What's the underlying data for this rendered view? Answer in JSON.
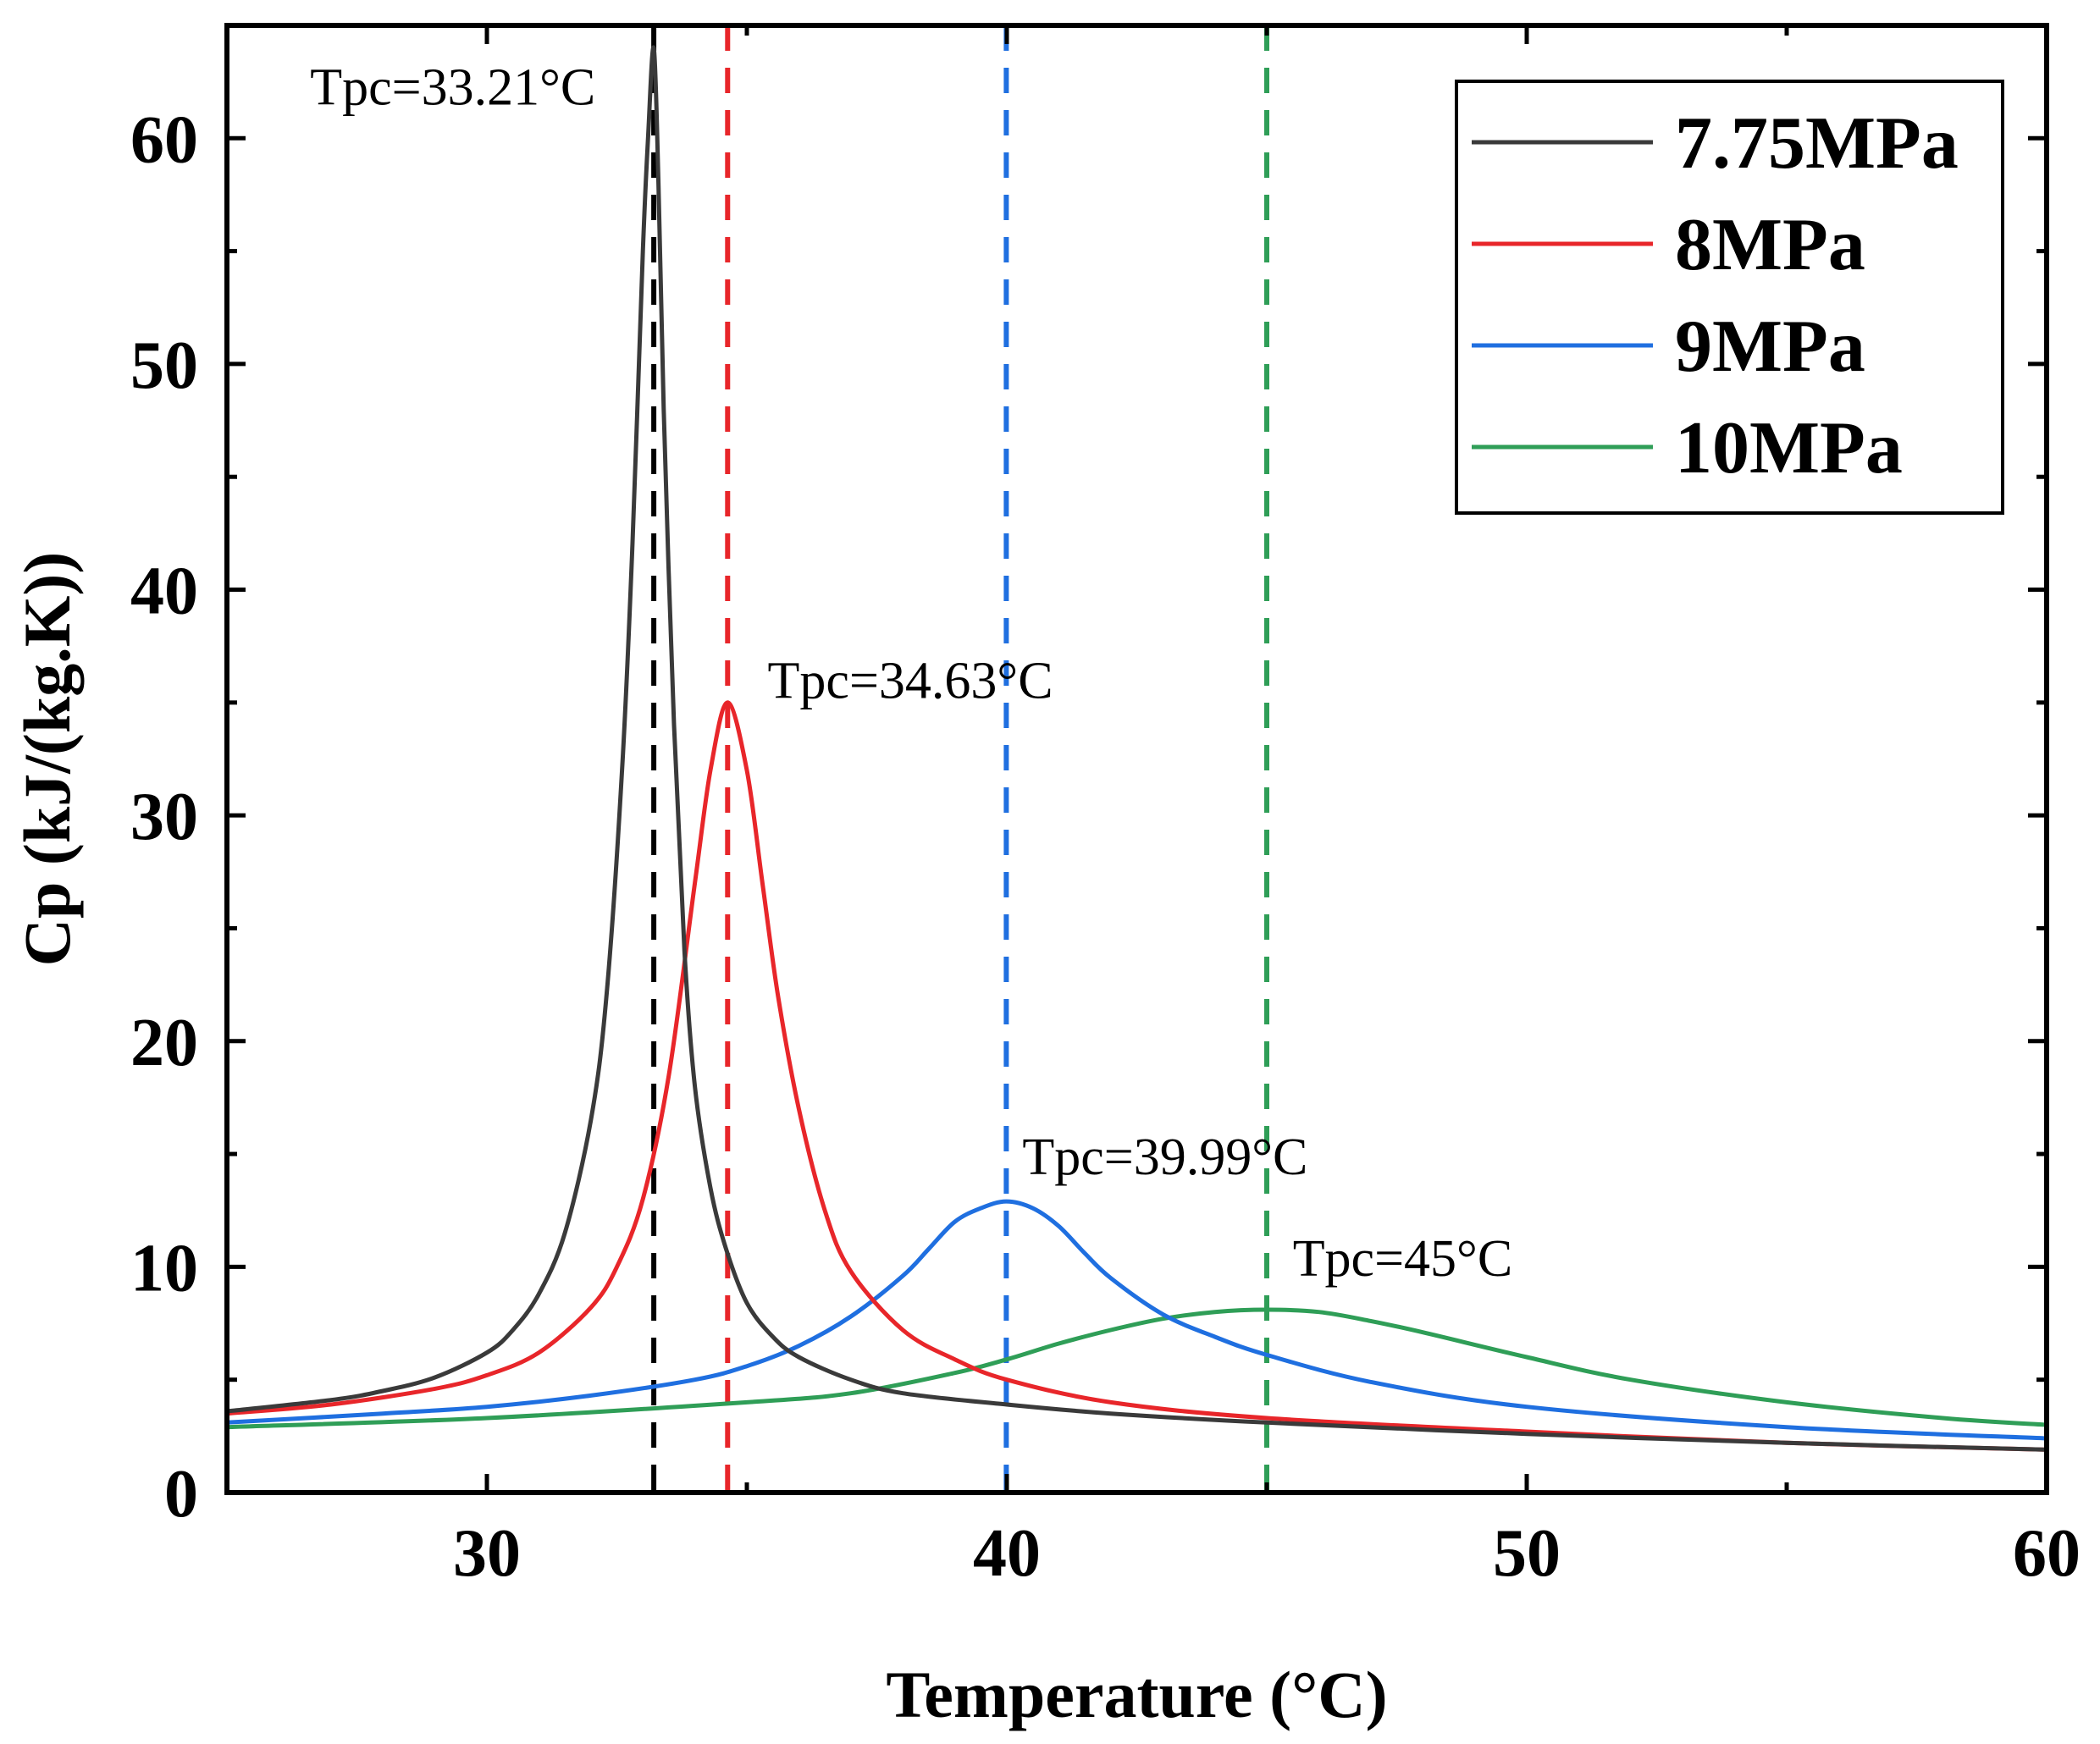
{
  "chart_data": {
    "type": "line",
    "title": "",
    "xlabel": "Temperature (°C)",
    "ylabel": "Cp (kJ/(kg.K))",
    "xlim": [
      25,
      60
    ],
    "ylim": [
      0,
      65
    ],
    "x_ticks": [
      30,
      40,
      50,
      60
    ],
    "y_ticks": [
      0,
      10,
      20,
      30,
      40,
      50,
      60
    ],
    "grid": false,
    "legend_position": "top-right",
    "series": [
      {
        "name": "7.75MPa",
        "color": "#3a3a3a",
        "x": [
          25,
          27,
          28,
          29,
          30,
          30.5,
          31,
          31.5,
          32,
          32.3,
          32.6,
          32.8,
          33.0,
          33.1,
          33.21,
          33.3,
          33.4,
          33.6,
          33.8,
          34.0,
          34.3,
          34.6,
          35,
          35.5,
          36,
          37,
          38,
          40,
          42,
          45,
          50,
          55,
          60
        ],
        "y": [
          3.6,
          4.1,
          4.5,
          5.1,
          6.2,
          7.2,
          8.8,
          11.5,
          16.5,
          22,
          32,
          42,
          55,
          60,
          64,
          58,
          48,
          34,
          24,
          18,
          13.5,
          10.8,
          8.4,
          6.9,
          6.0,
          5.0,
          4.4,
          3.9,
          3.5,
          3.1,
          2.6,
          2.2,
          1.9
        ]
      },
      {
        "name": "8MPa",
        "color": "#e8262a",
        "x": [
          25,
          27,
          29,
          30,
          31,
          32,
          32.5,
          33,
          33.5,
          34,
          34.3,
          34.63,
          35,
          35.3,
          35.6,
          36,
          36.5,
          37,
          38,
          39,
          40,
          42,
          45,
          50,
          55,
          60
        ],
        "y": [
          3.5,
          3.9,
          4.6,
          5.2,
          6.2,
          8.2,
          10,
          13,
          18.5,
          27,
          32,
          35,
          32,
          27,
          22,
          17,
          12.5,
          9.8,
          7.2,
          5.9,
          5.0,
          4.0,
          3.3,
          2.7,
          2.2,
          1.9
        ]
      },
      {
        "name": "9MPa",
        "color": "#1f6fe0",
        "x": [
          25,
          28,
          30,
          32,
          34,
          35,
          36,
          37,
          38,
          38.5,
          39,
          39.5,
          39.99,
          40.5,
          41,
          41.5,
          42,
          43,
          44,
          45,
          47,
          50,
          55,
          60
        ],
        "y": [
          3.1,
          3.5,
          3.8,
          4.3,
          5.0,
          5.6,
          6.5,
          7.8,
          9.6,
          10.8,
          12.0,
          12.6,
          12.9,
          12.6,
          11.8,
          10.6,
          9.5,
          7.9,
          6.9,
          6.1,
          4.9,
          3.8,
          2.9,
          2.4
        ]
      },
      {
        "name": "10MPa",
        "color": "#2f9e57",
        "x": [
          25,
          30,
          35,
          37,
          39,
          40,
          41,
          42,
          43,
          44,
          45,
          46,
          47,
          48,
          50,
          52,
          55,
          58,
          60
        ],
        "y": [
          2.9,
          3.3,
          4.0,
          4.4,
          5.3,
          5.9,
          6.6,
          7.2,
          7.7,
          8.0,
          8.1,
          8.0,
          7.6,
          7.1,
          6.0,
          5.0,
          4.0,
          3.3,
          3.0
        ]
      }
    ],
    "reference_lines": [
      {
        "x": 33.21,
        "color": "#000000"
      },
      {
        "x": 34.63,
        "color": "#e8262a"
      },
      {
        "x": 39.99,
        "color": "#1f6fe0"
      },
      {
        "x": 45,
        "color": "#2f9e57"
      }
    ],
    "annotations": [
      {
        "text": "Tpc=33.21°C",
        "x": 26.6,
        "y": 61.5
      },
      {
        "text": "Tpc=34.63°C",
        "x": 35.4,
        "y": 35.2
      },
      {
        "text": "Tpc=39.99°C",
        "x": 40.3,
        "y": 14.1
      },
      {
        "text": "Tpc=45°C",
        "x": 45.5,
        "y": 9.6
      }
    ]
  }
}
